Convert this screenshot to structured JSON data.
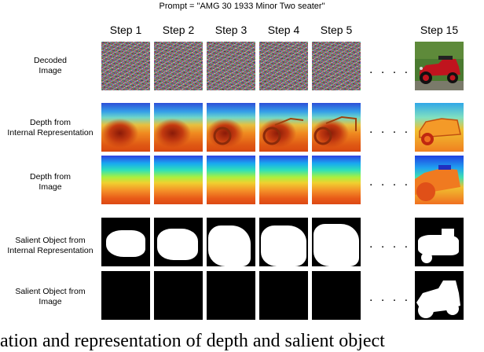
{
  "figure": {
    "prompt": "Prompt = \"AMG 30 1933 Minor Two seater\"",
    "steps": [
      "Step 1",
      "Step 2",
      "Step 3",
      "Step 4",
      "Step 5",
      "Step 15"
    ],
    "rows": [
      {
        "label_lines": [
          "Decoded",
          "Image"
        ]
      },
      {
        "label_lines": [
          "Depth from",
          "Internal Representation"
        ]
      },
      {
        "label_lines": [
          "Depth from",
          "Image"
        ]
      },
      {
        "label_lines": [
          "Salient Object from",
          "Internal Representation"
        ]
      },
      {
        "label_lines": [
          "Salient Object from",
          "Image"
        ]
      }
    ],
    "ellipsis": ". . . . . .",
    "caption_fragment": "ation and representation of depth and salient object"
  }
}
